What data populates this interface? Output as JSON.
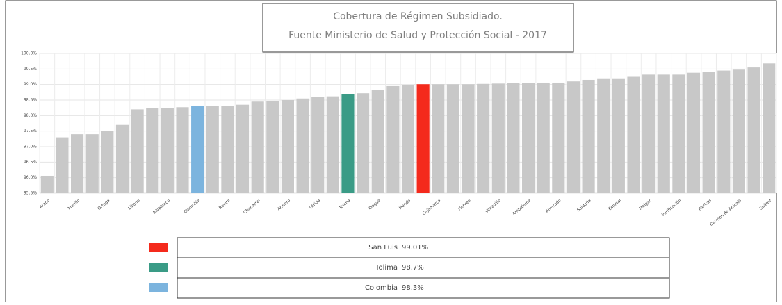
{
  "chart_data": {
    "type": "bar",
    "title": "Cobertura de Régimen Subsidiado.",
    "subtitle": "Fuente Ministerio de Salud y Protección Social  - 2017",
    "categories": [
      "Ataco",
      null,
      "Murillo",
      null,
      "Ortega",
      null,
      "Líbano",
      null,
      "Rioblanco",
      null,
      "Colombia",
      null,
      "Rovira",
      null,
      "Chaparral",
      null,
      "Armero",
      null,
      "Lérida",
      null,
      "Tolima",
      null,
      "Ibagué",
      null,
      "Honda",
      null,
      "Cajamarca",
      null,
      "Herveo",
      null,
      "Venadillo",
      null,
      "Ambalema",
      null,
      "Alvarado",
      null,
      "Saldaña",
      null,
      "Espinal",
      null,
      "Melgar",
      null,
      "Purificación",
      null,
      "Piedras",
      null,
      "Carmen de Apicalá",
      null,
      "Suárez"
    ],
    "values": [
      96.06,
      97.3,
      97.4,
      97.4,
      97.5,
      97.7,
      98.2,
      98.25,
      98.25,
      98.27,
      98.3,
      98.3,
      98.32,
      98.35,
      98.45,
      98.47,
      98.5,
      98.55,
      98.6,
      98.62,
      98.7,
      98.72,
      98.83,
      98.95,
      98.97,
      99.01,
      99.01,
      99.01,
      99.01,
      99.02,
      99.03,
      99.05,
      99.05,
      99.06,
      99.06,
      99.1,
      99.15,
      99.2,
      99.2,
      99.25,
      99.32,
      99.32,
      99.32,
      99.38,
      99.4,
      99.45,
      99.48,
      99.55,
      99.68
    ],
    "colors": [
      "#c8c8c8",
      "#c8c8c8",
      "#c8c8c8",
      "#c8c8c8",
      "#c8c8c8",
      "#c8c8c8",
      "#c8c8c8",
      "#c8c8c8",
      "#c8c8c8",
      "#c8c8c8",
      "#7cb4de",
      "#c8c8c8",
      "#c8c8c8",
      "#c8c8c8",
      "#c8c8c8",
      "#c8c8c8",
      "#c8c8c8",
      "#c8c8c8",
      "#c8c8c8",
      "#c8c8c8",
      "#3a9b86",
      "#c8c8c8",
      "#c8c8c8",
      "#c8c8c8",
      "#c8c8c8",
      "#f42a1c",
      "#c8c8c8",
      "#c8c8c8",
      "#c8c8c8",
      "#c8c8c8",
      "#c8c8c8",
      "#c8c8c8",
      "#c8c8c8",
      "#c8c8c8",
      "#c8c8c8",
      "#c8c8c8",
      "#c8c8c8",
      "#c8c8c8",
      "#c8c8c8",
      "#c8c8c8",
      "#c8c8c8",
      "#c8c8c8",
      "#c8c8c8",
      "#c8c8c8",
      "#c8c8c8",
      "#c8c8c8",
      "#c8c8c8",
      "#c8c8c8",
      "#c8c8c8"
    ],
    "ylim": [
      95.5,
      100
    ],
    "yticks": [
      {
        "value": 95.5,
        "label": "95.5%"
      },
      {
        "value": 96,
        "label": "96.0%"
      },
      {
        "value": 96.5,
        "label": "96.5%"
      },
      {
        "value": 97,
        "label": "97.0%"
      },
      {
        "value": 97.5,
        "label": "97.5%"
      },
      {
        "value": 98,
        "label": "98.0%"
      },
      {
        "value": 98.5,
        "label": "98.5%"
      },
      {
        "value": 99,
        "label": "99.0%"
      },
      {
        "value": 99.5,
        "label": "99.5%"
      },
      {
        "value": 100,
        "label": "100.0%"
      }
    ],
    "grid": true,
    "legend": [
      {
        "name": "San Luis",
        "label": "99.01%",
        "color": "#f42a1c"
      },
      {
        "name": "Tolima",
        "label": "98.7%",
        "color": "#3a9b86"
      },
      {
        "name": "Colombia",
        "label": "98.3%",
        "color": "#7cb4de"
      }
    ]
  }
}
